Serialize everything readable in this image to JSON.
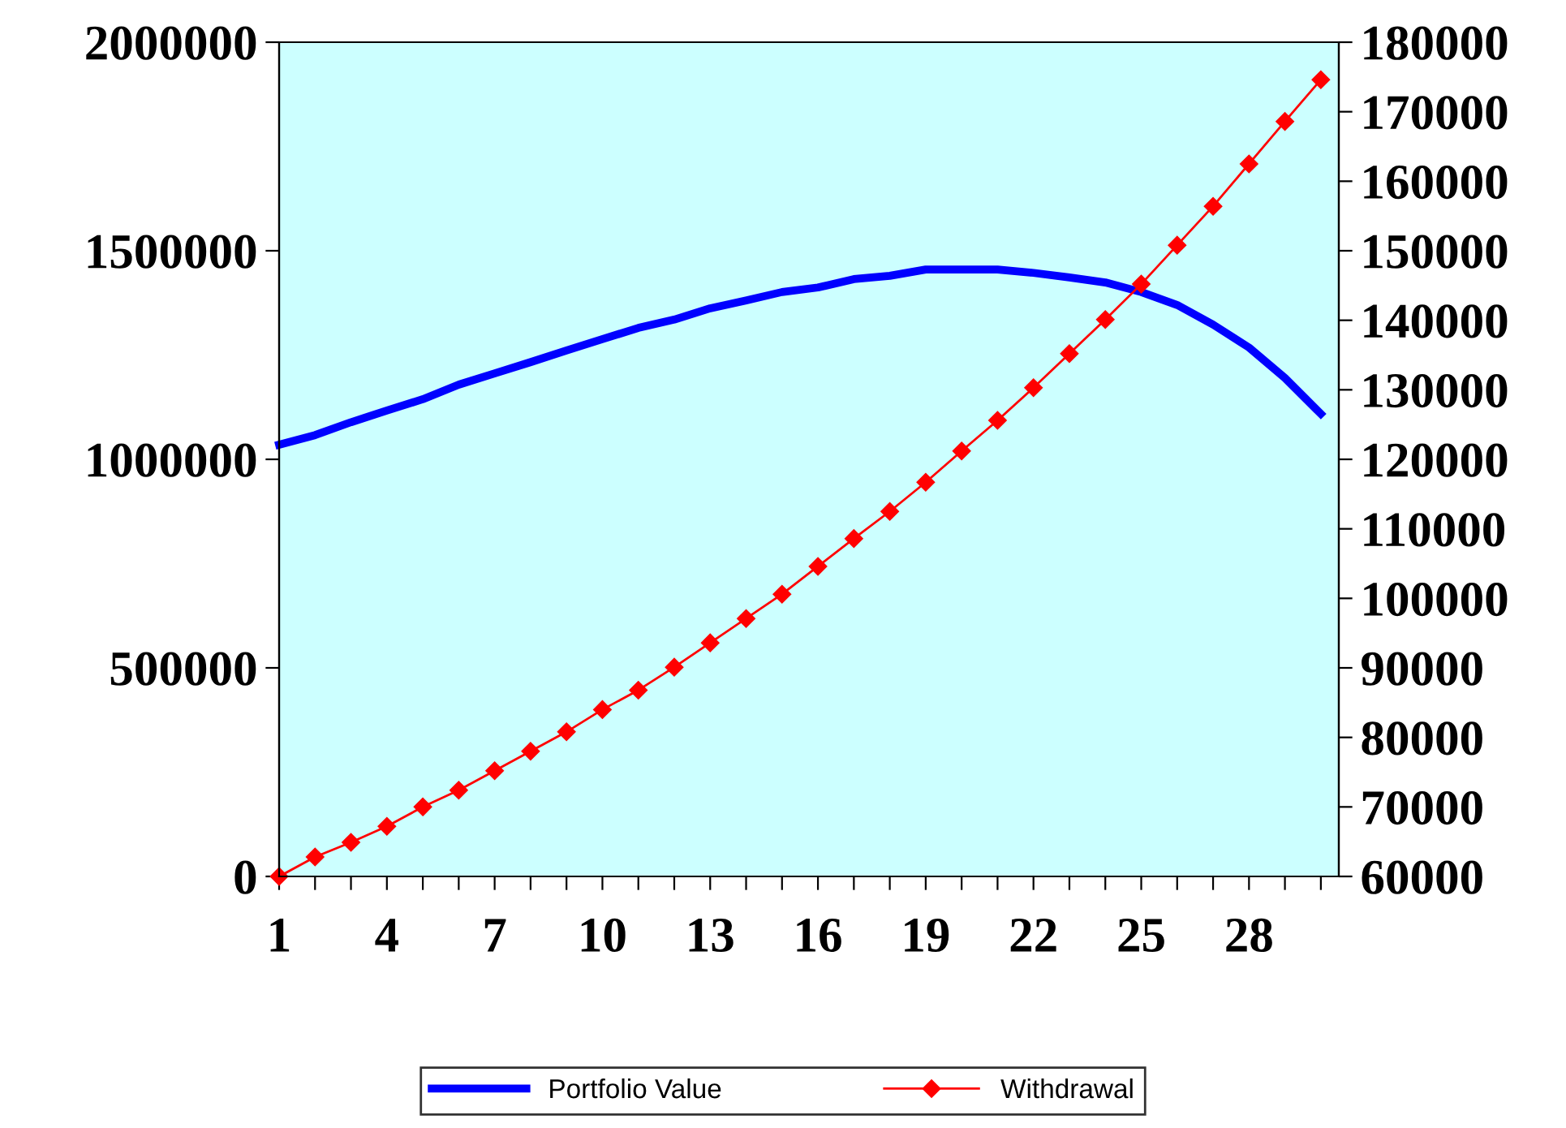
{
  "chart_data": {
    "type": "line",
    "categories": [
      "1",
      null,
      null,
      "4",
      null,
      null,
      "7",
      null,
      null,
      "10",
      null,
      null,
      "13",
      null,
      null,
      "16",
      null,
      null,
      "19",
      null,
      null,
      "22",
      null,
      null,
      "25",
      null,
      null,
      "28",
      null,
      null
    ],
    "series": [
      {
        "name": "Portfolio Value",
        "color": "#0000ff",
        "marker": "none",
        "values": [
          1035000,
          1058000,
          1089000,
          1117000,
          1144000,
          1179000,
          1206000,
          1233000,
          1261000,
          1288000,
          1315000,
          1335000,
          1362000,
          1381000,
          1401000,
          1412000,
          1432000,
          1440000,
          1455000,
          1455000,
          1455000,
          1447000,
          1436000,
          1424000,
          1401000,
          1370000,
          1323000,
          1268000,
          1195000,
          1109000
        ]
      },
      {
        "name": "Withdrawal",
        "color": "#ff0000",
        "marker": "diamond",
        "axis": "y2",
        "values": [
          60000,
          62800,
          64900,
          67200,
          70000,
          72400,
          75200,
          78000,
          80800,
          84000,
          86800,
          90100,
          93600,
          97100,
          100600,
          104600,
          108600,
          112500,
          116700,
          121200,
          125600,
          130300,
          135200,
          140100,
          145200,
          150800,
          156400,
          162500,
          168600,
          174600
        ]
      }
    ],
    "ylim": [
      0,
      2000000
    ],
    "yticks": [
      0,
      500000,
      1000000,
      1500000,
      2000000
    ],
    "y2lim": [
      60000,
      180000
    ],
    "y2ticks": [
      60000,
      70000,
      80000,
      90000,
      100000,
      110000,
      120000,
      130000,
      140000,
      150000,
      160000,
      170000,
      180000
    ],
    "grid": false,
    "legend": "bottom"
  }
}
